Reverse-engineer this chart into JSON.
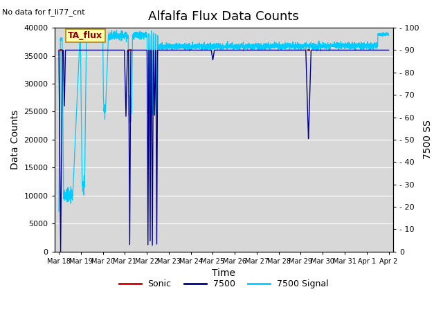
{
  "title": "Alfalfa Flux Data Counts",
  "no_data_text": "No data for f_li77_cnt",
  "ta_flux_label": "TA_flux",
  "ylabel_left": "Data Counts",
  "ylabel_right": "7500 SS",
  "xlabel": "Time",
  "ylim_left": [
    0,
    40000
  ],
  "ylim_right": [
    0,
    100
  ],
  "bg_color": "#d8d8d8",
  "sonic_color": "#cc0000",
  "blue_color": "#00008b",
  "cyan_color": "#00ccff",
  "x_tick_labels": [
    "Mar 18",
    "Mar 19",
    "Mar 20",
    "Mar 21",
    "Mar 22",
    "Mar 23",
    "Mar 24",
    "Mar 25",
    "Mar 26",
    "Mar 27",
    "Mar 28",
    "Mar 29",
    "Mar 30",
    "Mar 31",
    "Apr 1",
    "Apr 2"
  ],
  "title_fontsize": 13,
  "axis_fontsize": 10,
  "tick_fontsize": 8
}
